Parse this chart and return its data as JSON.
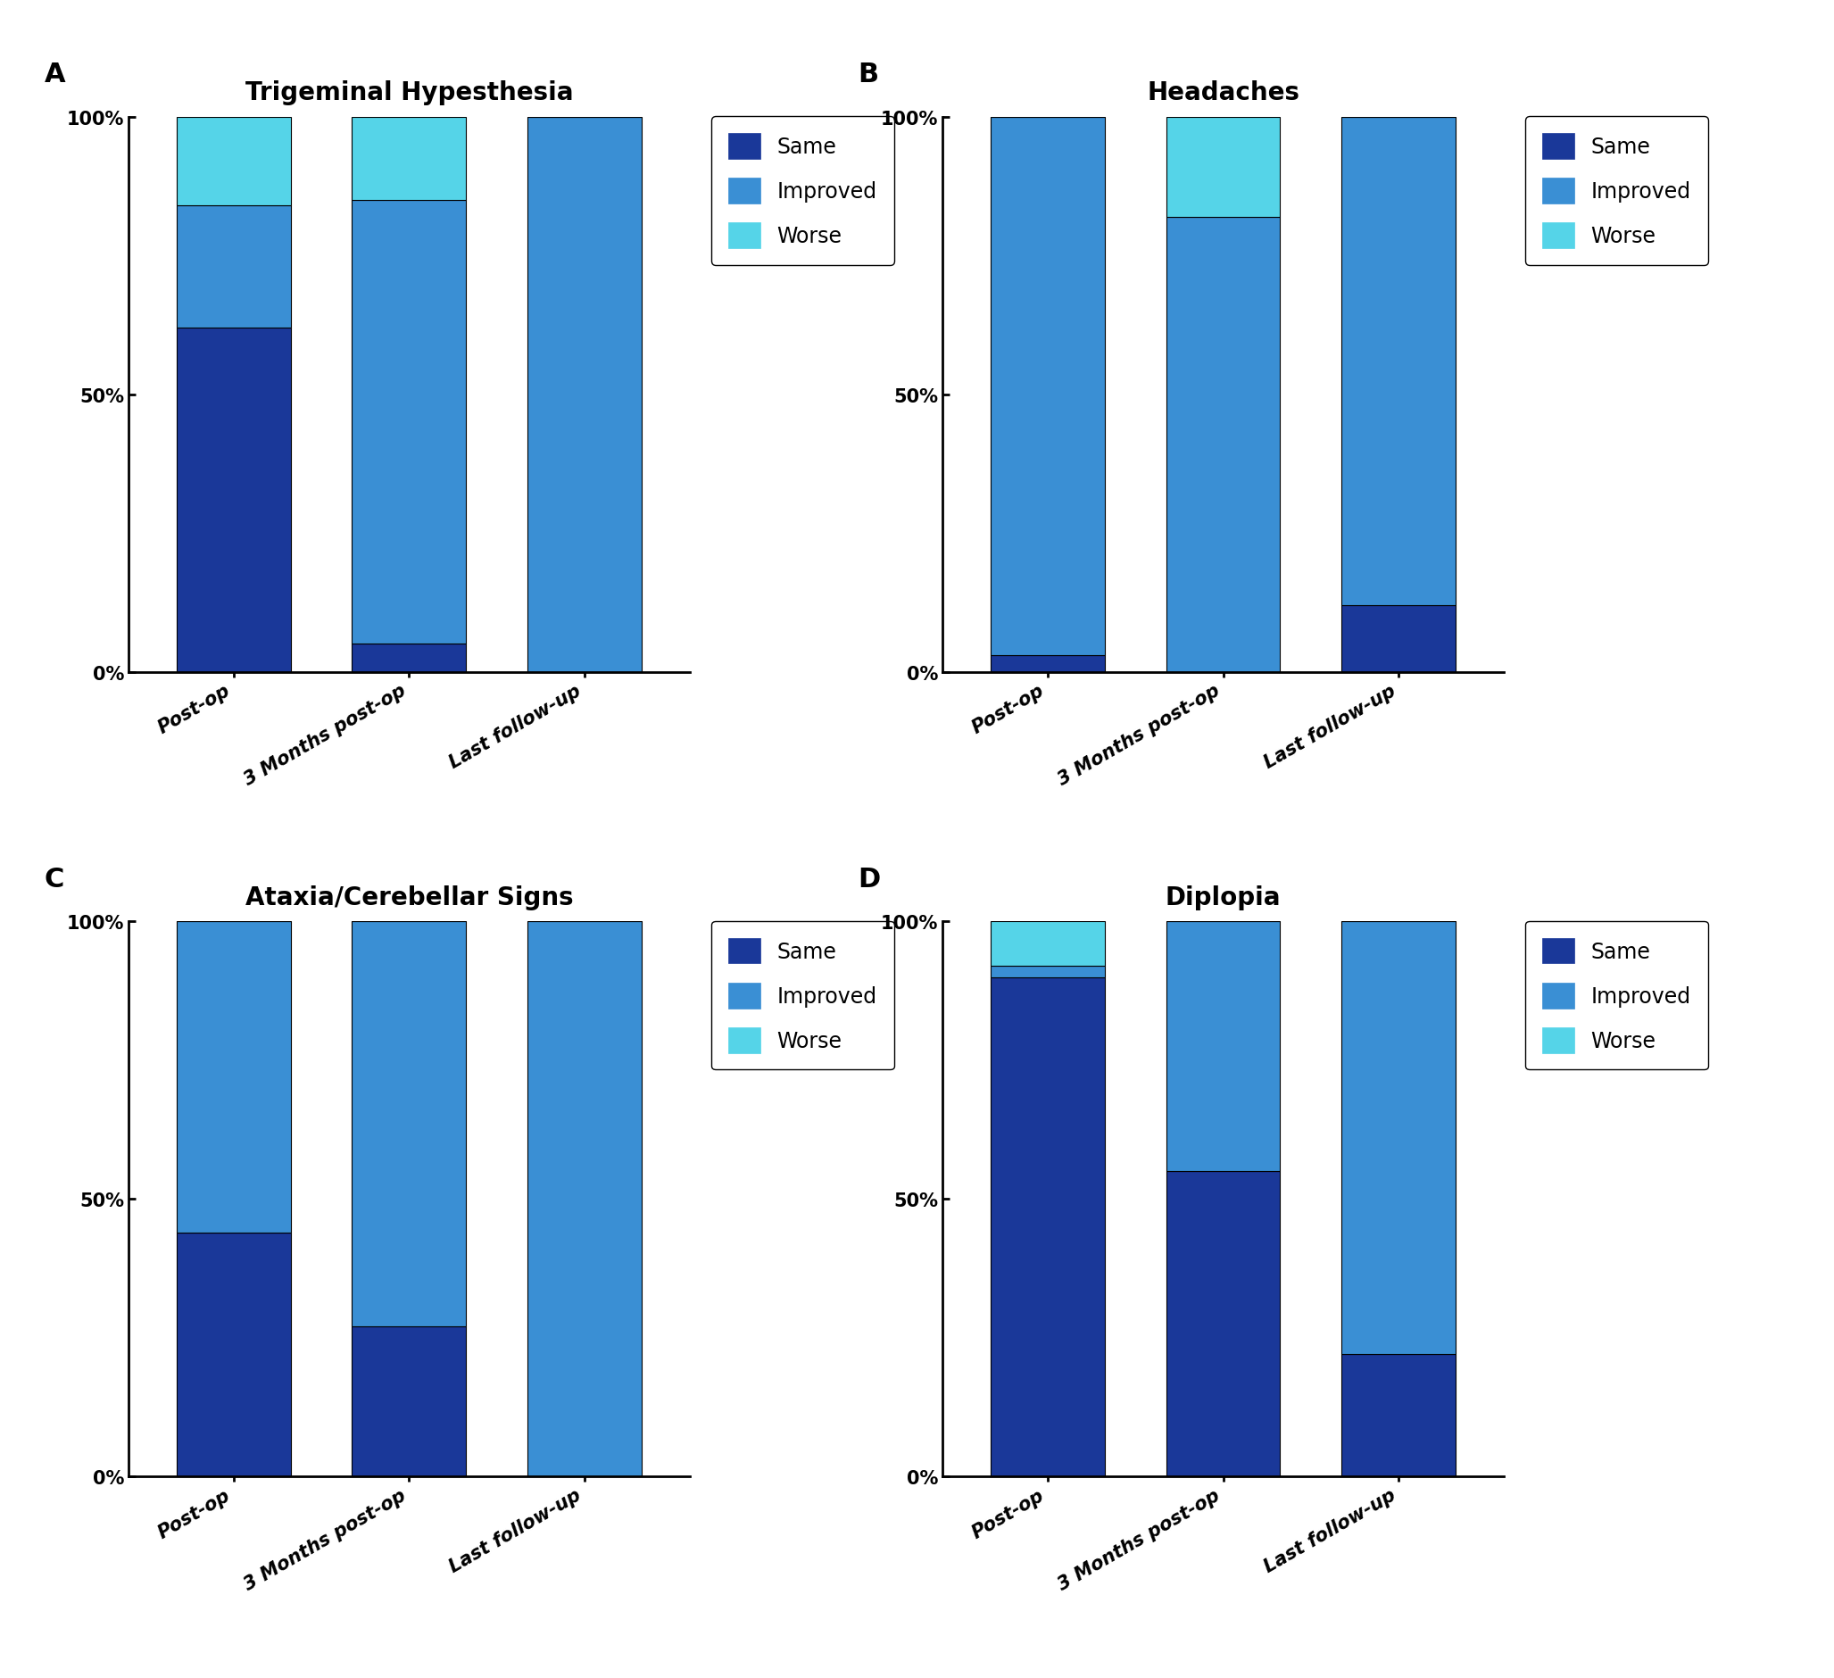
{
  "panels": [
    {
      "label": "A",
      "title": "Trigeminal Hypesthesia",
      "categories": [
        "Post-op",
        "3 Months post-op",
        "Last follow-up"
      ],
      "same": [
        62,
        5,
        0
      ],
      "improved": [
        22,
        80,
        100
      ],
      "worse": [
        16,
        15,
        0
      ]
    },
    {
      "label": "B",
      "title": "Headaches",
      "categories": [
        "Post-op",
        "3 Months post-op",
        "Last follow-up"
      ],
      "same": [
        3,
        0,
        12
      ],
      "improved": [
        97,
        82,
        88
      ],
      "worse": [
        0,
        18,
        0
      ]
    },
    {
      "label": "C",
      "title": "Ataxia/Cerebellar Signs",
      "categories": [
        "Post-op",
        "3 Months post-op",
        "Last follow-up"
      ],
      "same": [
        44,
        27,
        0
      ],
      "improved": [
        56,
        73,
        100
      ],
      "worse": [
        0,
        0,
        0
      ]
    },
    {
      "label": "D",
      "title": "Diplopia",
      "categories": [
        "Post-op",
        "3 Months post-op",
        "Last follow-up"
      ],
      "same": [
        90,
        55,
        22
      ],
      "improved": [
        2,
        45,
        78
      ],
      "worse": [
        8,
        0,
        0
      ]
    }
  ],
  "colors": {
    "same": "#1a3899",
    "improved": "#3a8fd4",
    "worse": "#55d4e8"
  },
  "bar_width": 0.65,
  "yticks": [
    0,
    50,
    100
  ],
  "yticklabels": [
    "0%",
    "50%",
    "100%"
  ],
  "background_color": "#ffffff",
  "title_fontsize": 20,
  "label_fontsize": 22,
  "tick_fontsize": 15,
  "legend_fontsize": 17
}
